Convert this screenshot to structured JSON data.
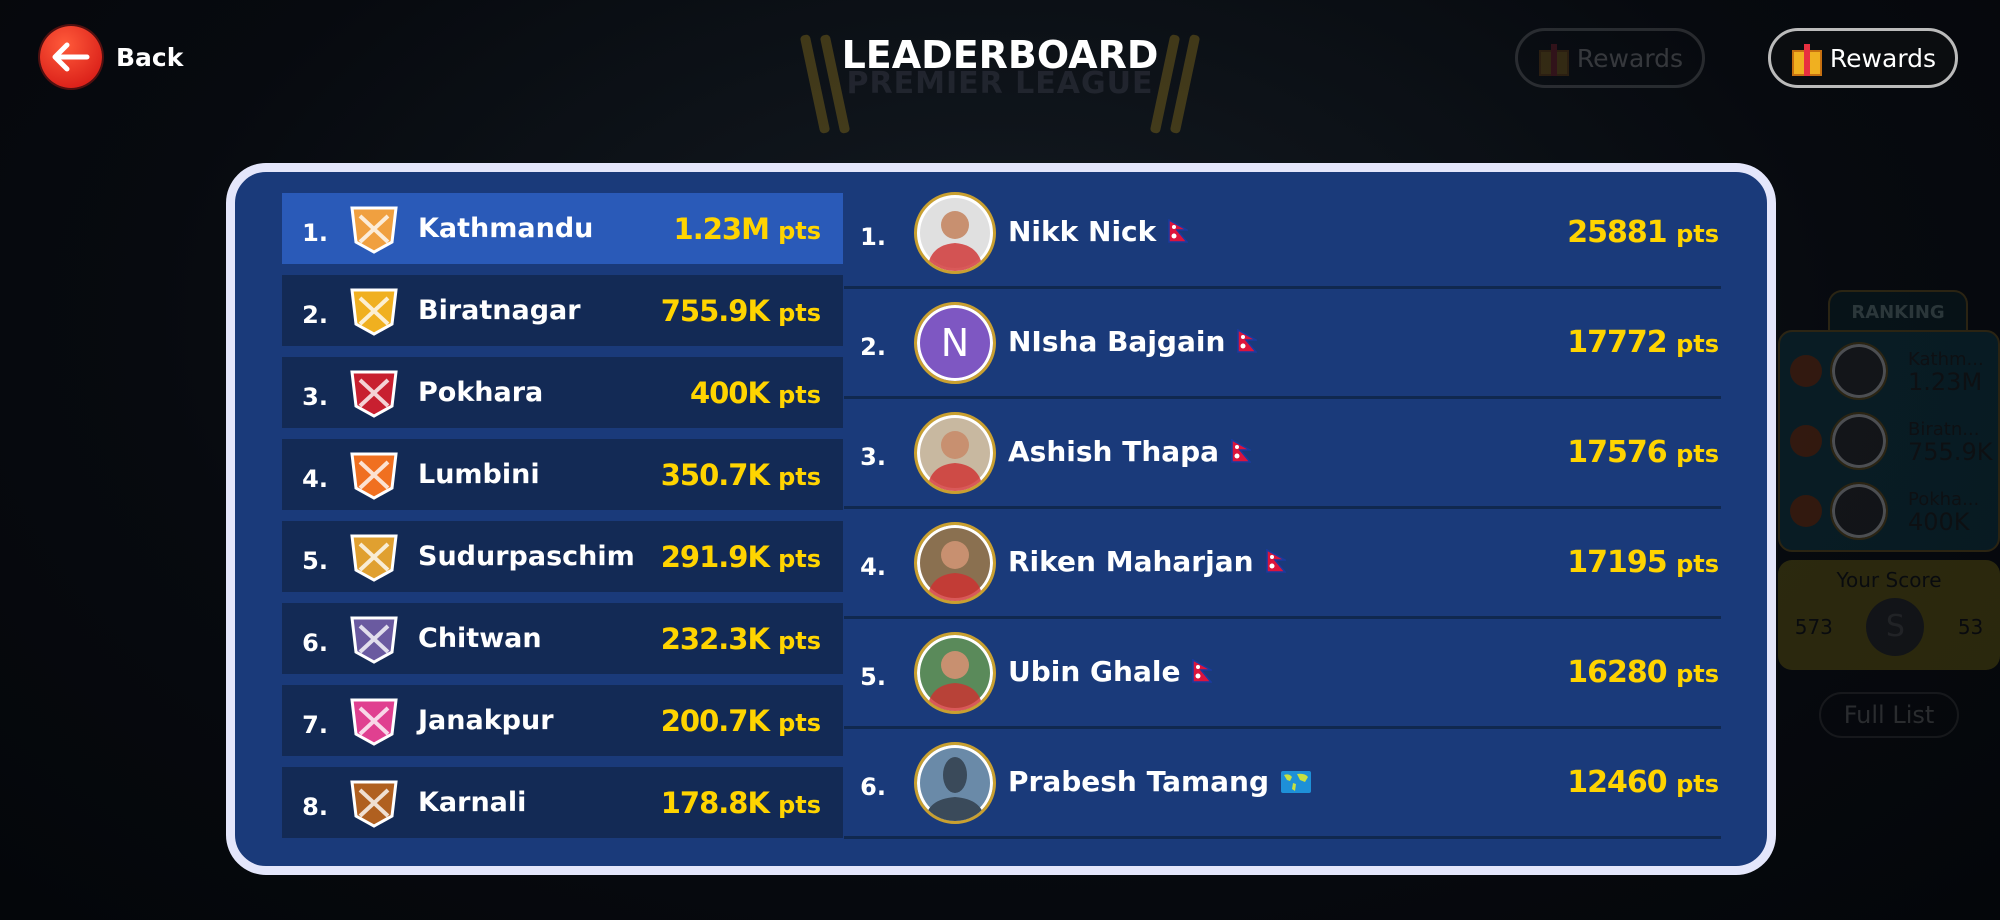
{
  "header": {
    "back_label": "Back",
    "title": "LEADERBOARD",
    "logo_text": "PREMIER LEAGUE",
    "rewards_label": "Rewards",
    "rewards_faded_label": "Rewards"
  },
  "colors": {
    "panel": "#1a3a7a",
    "row": "#132a55",
    "highlight": "#2a5ab8",
    "points": "#ffd400",
    "border": "#e4e6fb"
  },
  "pts_unit": "pts",
  "teams": [
    {
      "rank": "1.",
      "name": "Kathmandu",
      "points": "1.23M",
      "icon": "crossed-khukuri-icon",
      "color": "#f0a040"
    },
    {
      "rank": "2.",
      "name": "Biratnagar",
      "points": "755.9K",
      "icon": "mountain-crown-icon",
      "color": "#f0b020"
    },
    {
      "rank": "3.",
      "name": "Pokhara",
      "points": "400K",
      "icon": "eagle-shield-icon",
      "color": "#c82030"
    },
    {
      "rank": "4.",
      "name": "Lumbini",
      "points": "350.7K",
      "icon": "lion-icon",
      "color": "#f07020"
    },
    {
      "rank": "5.",
      "name": "Sudurpaschim",
      "points": "291.9K",
      "icon": "tiger-icon",
      "color": "#e0a030"
    },
    {
      "rank": "6.",
      "name": "Chitwan",
      "points": "232.3K",
      "icon": "rhino-icon",
      "color": "#6a5aa0"
    },
    {
      "rank": "7.",
      "name": "Janakpur",
      "points": "200.7K",
      "icon": "temple-arch-icon",
      "color": "#e04090"
    },
    {
      "rank": "8.",
      "name": "Karnali",
      "points": "178.8K",
      "icon": "yak-icon",
      "color": "#b06020"
    }
  ],
  "players": [
    {
      "rank": "1.",
      "name": "Nikk Nick",
      "points": "25881",
      "flag": "nepal-flag-icon",
      "avatar": "photo",
      "avatar_color": "#e0e0e0"
    },
    {
      "rank": "2.",
      "name": "NIsha Bajgain",
      "points": "17772",
      "flag": "nepal-flag-icon",
      "avatar": "letter",
      "letter": "N",
      "avatar_color": "#7e57c2"
    },
    {
      "rank": "3.",
      "name": "Ashish Thapa",
      "points": "17576",
      "flag": "nepal-flag-icon",
      "avatar": "photo",
      "avatar_color": "#c8b8a0"
    },
    {
      "rank": "4.",
      "name": "Riken Maharjan",
      "points": "17195",
      "flag": "nepal-flag-icon",
      "avatar": "photo",
      "avatar_color": "#8a7050"
    },
    {
      "rank": "5.",
      "name": "Ubin Ghale",
      "points": "16280",
      "flag": "nepal-flag-icon",
      "avatar": "photo",
      "avatar_color": "#5a8a5a"
    },
    {
      "rank": "6.",
      "name": "Prabesh Tamang",
      "points": "12460",
      "flag": "world-map-icon",
      "avatar": "silhouette",
      "avatar_color": "#6a8aa8"
    }
  ],
  "side_ranking": {
    "title": "RANKING",
    "items": [
      {
        "name": "Kathm...",
        "points": "1.23M"
      },
      {
        "name": "Biratn...",
        "points": "755.9K"
      },
      {
        "name": "Pokha...",
        "points": "400K"
      }
    ],
    "your_score_label": "Your Score",
    "your_rank": "573",
    "avatar_letter": "S",
    "your_points": "53",
    "full_list_label": "Full List"
  }
}
